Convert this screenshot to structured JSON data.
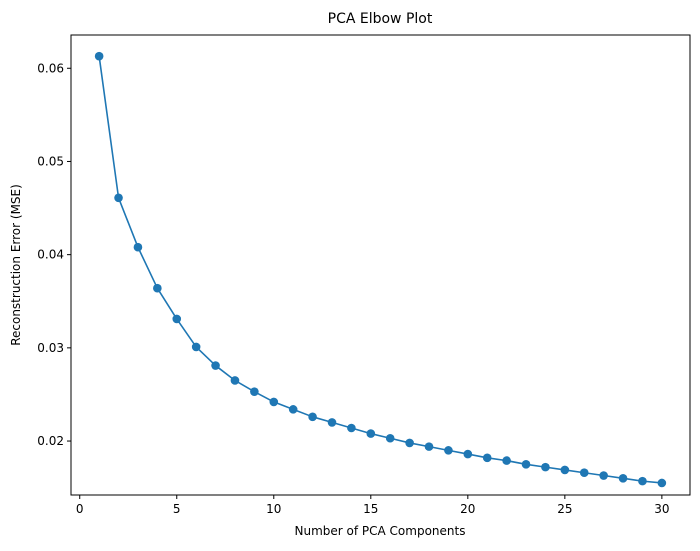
{
  "chart_data": {
    "type": "line",
    "title": "PCA Elbow Plot",
    "xlabel": "Number of PCA Components",
    "ylabel": "Reconstruction Error (MSE)",
    "x": [
      1,
      2,
      3,
      4,
      5,
      6,
      7,
      8,
      9,
      10,
      11,
      12,
      13,
      14,
      15,
      16,
      17,
      18,
      19,
      20,
      21,
      22,
      23,
      24,
      25,
      26,
      27,
      28,
      29,
      30
    ],
    "series": [
      {
        "values": [
          0.0613,
          0.0461,
          0.0408,
          0.0364,
          0.0331,
          0.0301,
          0.0281,
          0.0265,
          0.0253,
          0.0242,
          0.0234,
          0.0226,
          0.022,
          0.0214,
          0.0208,
          0.0203,
          0.0198,
          0.0194,
          0.019,
          0.0186,
          0.0182,
          0.0179,
          0.0175,
          0.0172,
          0.0169,
          0.0166,
          0.0163,
          0.016,
          0.0157,
          0.0155
        ],
        "color": "#1f77b4",
        "marker": "circle"
      }
    ],
    "xlim": [
      -0.45,
      31.45
    ],
    "ylim": [
      0.01421,
      0.06357
    ],
    "xticks": [
      0,
      5,
      10,
      15,
      20,
      25,
      30
    ],
    "xtick_labels": [
      "0",
      "5",
      "10",
      "15",
      "20",
      "25",
      "30"
    ],
    "yticks": [
      0.02,
      0.03,
      0.04,
      0.05,
      0.06
    ],
    "ytick_labels": [
      "0.02",
      "0.03",
      "0.04",
      "0.05",
      "0.06"
    ],
    "grid": false,
    "legend": "none"
  }
}
